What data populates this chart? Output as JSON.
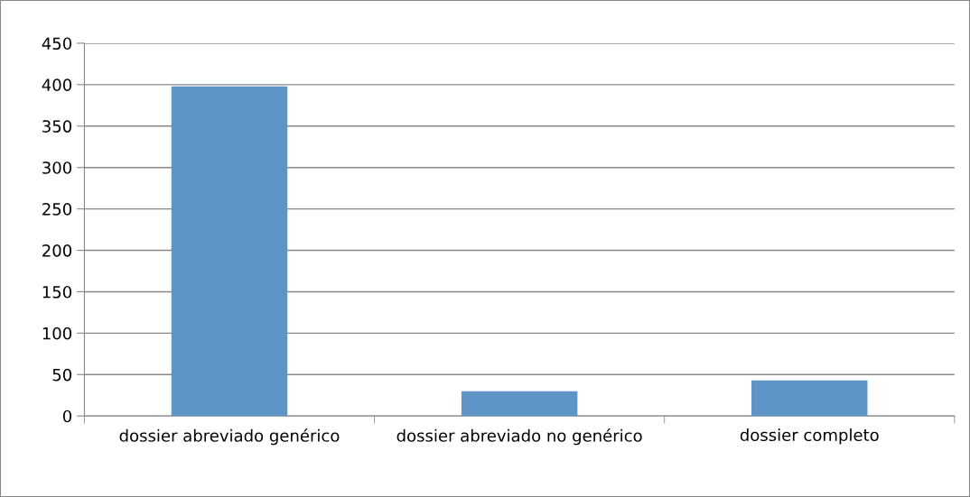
{
  "chart_data": {
    "type": "bar",
    "categories": [
      "dossier abreviado genérico",
      "dossier abreviado no genérico",
      "dossier completo"
    ],
    "values": [
      398,
      30,
      43
    ],
    "color": "#5f94c8",
    "ylim": [
      0,
      450
    ],
    "yticks": [
      0,
      50,
      100,
      150,
      200,
      250,
      300,
      350,
      400,
      450
    ],
    "grid": "y",
    "legend": false
  }
}
